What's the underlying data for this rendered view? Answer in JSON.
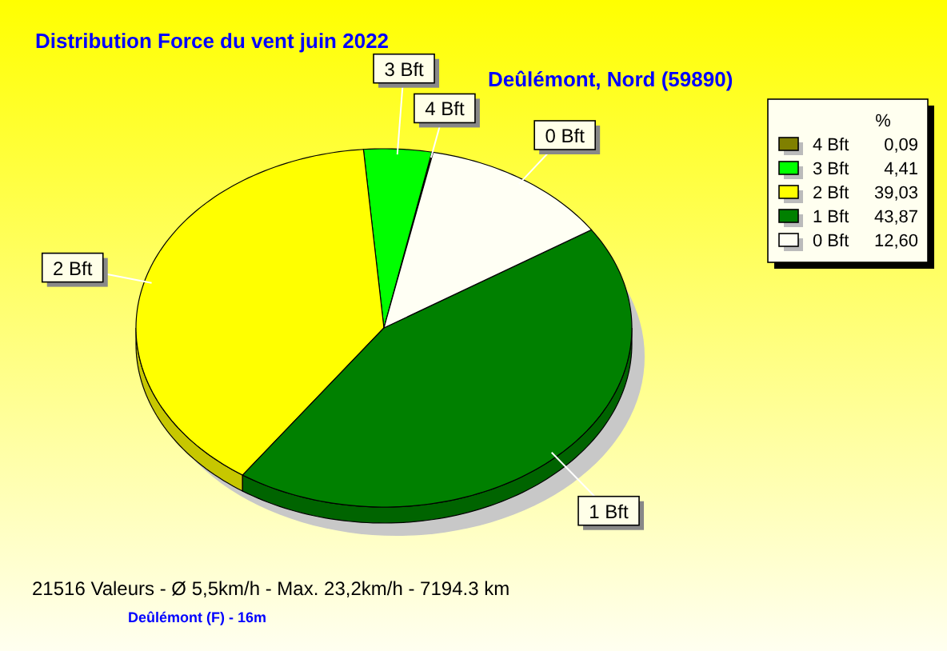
{
  "chart_data": {
    "type": "pie",
    "title": "Distribution Force du vent  juin 2022",
    "subtitle": "Deûlémont, Nord (59890)",
    "legend_title": "%",
    "categories": [
      "4 Bft",
      "3 Bft",
      "2 Bft",
      "1 Bft",
      "0 Bft"
    ],
    "values": [
      0.09,
      4.41,
      39.03,
      43.87,
      12.6
    ],
    "value_labels": [
      "0,09",
      "4,41",
      "39,03",
      "43,87",
      "12,60"
    ],
    "colors": [
      "#808000",
      "#00ff00",
      "#ffff00",
      "#008000",
      "#fffff4"
    ],
    "legend": "top right",
    "annotations": [
      "21516 Valeurs   -   Ø 5,5km/h  -  Max. 23,2km/h   -   7194.3 km",
      "Deûlémont (F) - 16m"
    ]
  }
}
